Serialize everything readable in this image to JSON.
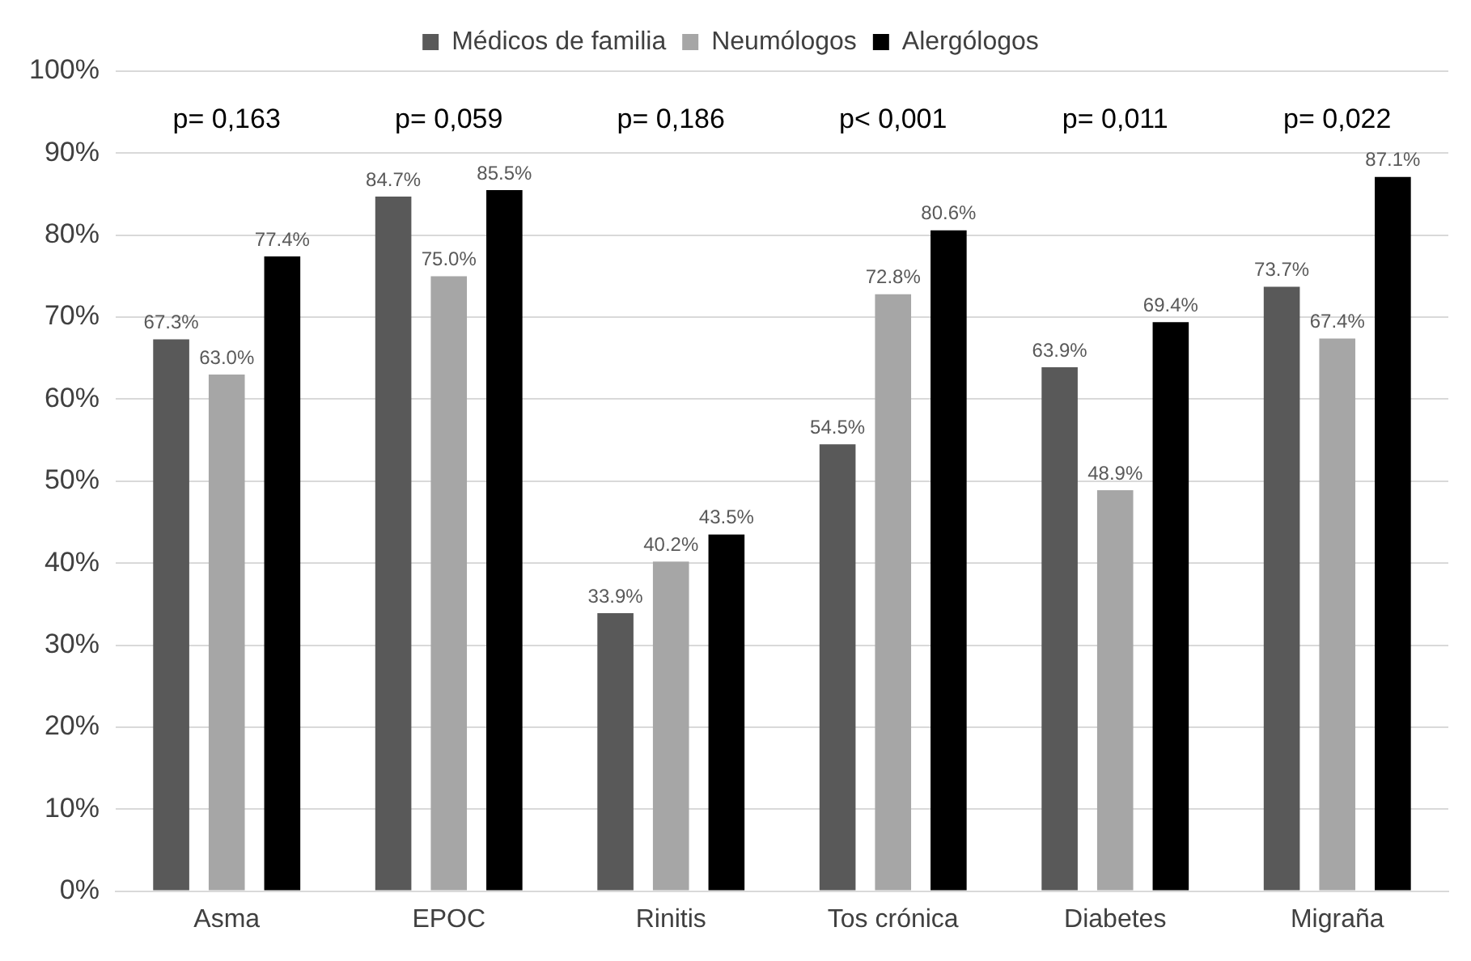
{
  "chart_data": {
    "type": "bar",
    "categories": [
      "Asma",
      "EPOC",
      "Rinitis",
      "Tos crónica",
      "Diabetes",
      "Migraña"
    ],
    "series": [
      {
        "name": "Médicos de familia",
        "color": "#595959",
        "values": [
          67.3,
          84.7,
          33.9,
          54.5,
          63.9,
          73.7
        ],
        "value_labels": [
          "67.3%",
          "84.7%",
          "33.9%",
          "54.5%",
          "63.9%",
          "73.7%"
        ]
      },
      {
        "name": "Neumólogos",
        "color": "#a6a6a6",
        "values": [
          63.0,
          75.0,
          40.2,
          72.8,
          48.9,
          67.4
        ],
        "value_labels": [
          "63.0%",
          "75.0%",
          "40.2%",
          "72.8%",
          "48.9%",
          "67.4%"
        ]
      },
      {
        "name": "Alergólogos",
        "color": "#000000",
        "values": [
          77.4,
          85.5,
          43.5,
          80.6,
          69.4,
          87.1
        ],
        "value_labels": [
          "77.4%",
          "85.5%",
          "43.5%",
          "80.6%",
          "69.4%",
          "87.1%"
        ]
      }
    ],
    "ylim": [
      0,
      100
    ],
    "yticks": [
      {
        "value": 0,
        "label": "0%"
      },
      {
        "value": 10,
        "label": "10%"
      },
      {
        "value": 20,
        "label": "20%"
      },
      {
        "value": 30,
        "label": "30%"
      },
      {
        "value": 40,
        "label": "40%"
      },
      {
        "value": 50,
        "label": "50%"
      },
      {
        "value": 60,
        "label": "60%"
      },
      {
        "value": 70,
        "label": "70%"
      },
      {
        "value": 80,
        "label": "80%"
      },
      {
        "value": 90,
        "label": "90%"
      },
      {
        "value": 100,
        "label": "100%"
      }
    ],
    "grid": "y",
    "legend": "top",
    "annotations": [
      "p= 0,163",
      "p= 0,059",
      "p= 0,186",
      "p< 0,001",
      "p= 0,011",
      "p= 0,022"
    ]
  }
}
